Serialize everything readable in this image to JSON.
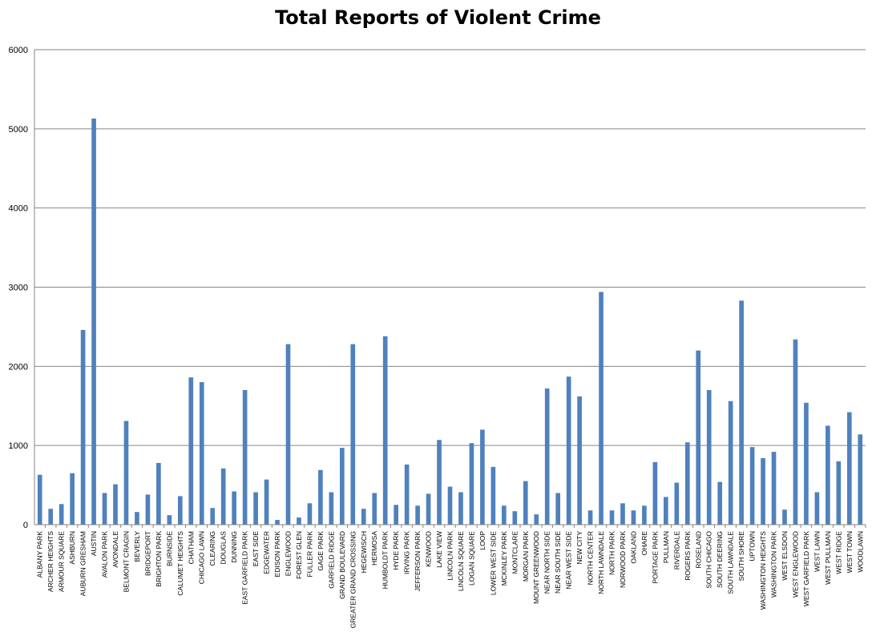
{
  "chart_data": {
    "type": "bar",
    "title": "Total Reports of Violent Crime",
    "xlabel": "",
    "ylabel": "",
    "ylim": [
      0,
      6000
    ],
    "yticks": [
      0,
      1000,
      2000,
      3000,
      4000,
      5000,
      6000
    ],
    "grid": true,
    "legend": "none",
    "bar_color": "#4f81bd",
    "categories": [
      "ALBANY PARK",
      "ARCHER HEIGHTS",
      "ARMOUR SQUARE",
      "ASHBURN",
      "AUBURN GRESHAM",
      "AUSTIN",
      "AVALON PARK",
      "AVONDALE",
      "BELMONT CRAGIN",
      "BEVERLY",
      "BRIDGEPORT",
      "BRIGHTON PARK",
      "BURNSIDE",
      "CALUMET HEIGHTS",
      "CHATHAM",
      "CHICAGO LAWN",
      "CLEARING",
      "DOUGLAS",
      "DUNNING",
      "EAST GARFIELD PARK",
      "EAST SIDE",
      "EDGEWATER",
      "EDISON PARK",
      "ENGLEWOOD",
      "FOREST GLEN",
      "FULLER PARK",
      "GAGE PARK",
      "GARFIELD RIDGE",
      "GRAND BOULEVARD",
      "GREATER GRAND CROSSING",
      "HEGEWISCH",
      "HERMOSA",
      "HUMBOLDT PARK",
      "HYDE PARK",
      "IRVING PARK",
      "JEFFERSON PARK",
      "KENWOOD",
      "LAKE VIEW",
      "LINCOLN PARK",
      "LINCOLN SQUARE",
      "LOGAN SQUARE",
      "LOOP",
      "LOWER WEST SIDE",
      "MCKINLEY PARK",
      "MONTCLARE",
      "MORGAN PARK",
      "MOUNT GREENWOOD",
      "NEAR NORTH SIDE",
      "NEAR SOUTH SIDE",
      "NEAR WEST SIDE",
      "NEW CITY",
      "NORTH CENTER",
      "NORTH LAWNDALE",
      "NORTH PARK",
      "NORWOOD PARK",
      "OAKLAND",
      "OHARE",
      "PORTAGE PARK",
      "PULLMAN",
      "RIVERDALE",
      "ROGERS PARK",
      "ROSELAND",
      "SOUTH CHICAGO",
      "SOUTH DEERING",
      "SOUTH LAWNDALE",
      "SOUTH SHORE",
      "UPTOWN",
      "WASHINGTON HEIGHTS",
      "WASHINGTON PARK",
      "WEST ELSDON",
      "WEST ENGLEWOOD",
      "WEST GARFIELD PARK",
      "WEST LAWN",
      "WEST PULLMAN",
      "WEST RIDGE",
      "WEST TOWN",
      "WOODLAWN"
    ],
    "values": [
      630,
      200,
      260,
      650,
      2460,
      5130,
      400,
      510,
      1310,
      160,
      380,
      780,
      120,
      360,
      1860,
      1800,
      210,
      710,
      420,
      1700,
      410,
      570,
      60,
      2280,
      90,
      270,
      690,
      410,
      970,
      2280,
      200,
      400,
      2380,
      250,
      760,
      240,
      390,
      1070,
      480,
      410,
      1030,
      1200,
      730,
      240,
      170,
      550,
      130,
      1720,
      400,
      1870,
      1620,
      180,
      2940,
      180,
      270,
      180,
      240,
      790,
      350,
      530,
      1040,
      2200,
      1700,
      540,
      1560,
      2830,
      980,
      840,
      920,
      190,
      2340,
      1540,
      410,
      1250,
      800,
      1420,
      1140
    ]
  }
}
